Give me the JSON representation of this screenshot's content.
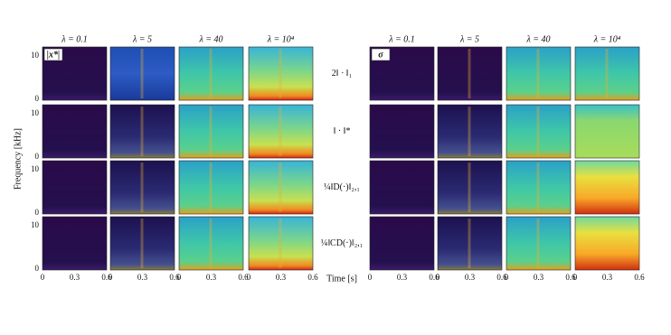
{
  "left": {
    "label": "|x*|"
  },
  "right": {
    "label": "σ"
  },
  "columns": [
    "λ = 0.1",
    "λ = 5",
    "λ = 40",
    "λ = 10⁴"
  ],
  "rows": [
    "2‖ · ‖₁",
    "‖ · ‖*",
    "¼‖D(·)‖₂,₁",
    "¼‖CD(·)‖₂,₁"
  ],
  "y_axis": {
    "label": "Frequency [kHz]",
    "ticks": [
      "0",
      "10"
    ]
  },
  "x_axis": {
    "label": "Time [s]",
    "ticks": [
      "0",
      "0.3",
      "0.6"
    ]
  }
}
